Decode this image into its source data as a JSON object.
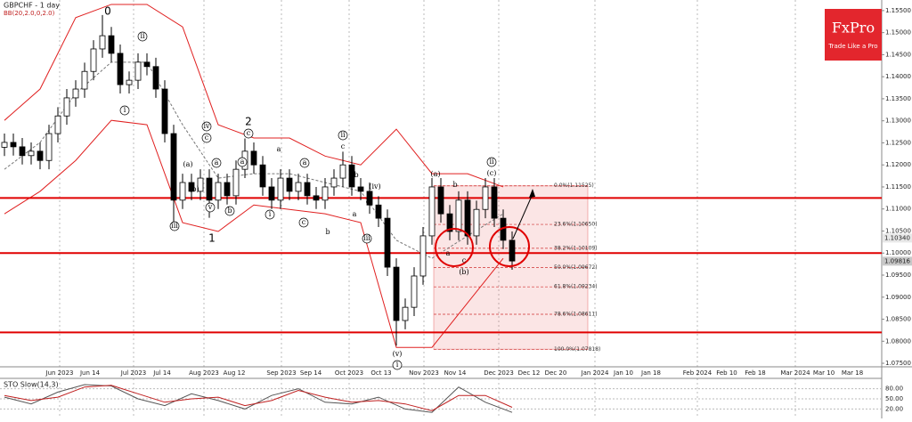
{
  "chart_data": {
    "type": "candlestick",
    "title": "GBPCHF - 1 day",
    "subtitle": "BB(20,2.0,0,2.0)",
    "open": [
      1.124,
      1.1251,
      1.1241,
      1.1221,
      1.1231,
      1.121,
      1.1271,
      1.1311,
      1.1352,
      1.1372,
      1.1412,
      1.1463,
      1.1493,
      1.1453,
      1.1382,
      1.1392,
      1.1433,
      1.1423,
      1.1372,
      1.1271,
      1.112,
      1.116,
      1.114,
      1.117,
      1.112,
      1.116,
      1.113,
      1.119,
      1.1231,
      1.12,
      1.115,
      1.112,
      1.117,
      1.114,
      1.116,
      1.113,
      1.112,
      1.115,
      1.117,
      1.12,
      1.115,
      1.114,
      1.1109,
      1.1079,
      1.0968,
      1.0847,
      1.0877,
      1.0948,
      1.1039,
      1.115,
      1.1089,
      1.1049,
      1.112,
      1.1039,
      1.1099,
      1.115,
      1.1079,
      1.1029
    ],
    "high": [
      1.1271,
      1.1271,
      1.1261,
      1.1251,
      1.1251,
      1.1291,
      1.1331,
      1.1372,
      1.1392,
      1.1432,
      1.1483,
      1.154,
      1.1513,
      1.1473,
      1.1412,
      1.1453,
      1.1453,
      1.1443,
      1.1392,
      1.1291,
      1.118,
      1.118,
      1.119,
      1.119,
      1.118,
      1.118,
      1.121,
      1.126,
      1.1251,
      1.122,
      1.117,
      1.119,
      1.119,
      1.118,
      1.118,
      1.115,
      1.117,
      1.119,
      1.123,
      1.122,
      1.117,
      1.116,
      1.1129,
      1.1099,
      1.0988,
      1.0897,
      1.0968,
      1.1059,
      1.117,
      1.117,
      1.1109,
      1.114,
      1.114,
      1.1119,
      1.117,
      1.117,
      1.1099,
      1.1049
    ],
    "low": [
      1.122,
      1.1221,
      1.1201,
      1.1201,
      1.119,
      1.119,
      1.1251,
      1.1291,
      1.1332,
      1.1352,
      1.1392,
      1.1443,
      1.1433,
      1.1362,
      1.1362,
      1.1372,
      1.1403,
      1.1352,
      1.1251,
      1.107,
      1.11,
      1.112,
      1.112,
      1.108,
      1.11,
      1.111,
      1.111,
      1.117,
      1.118,
      1.113,
      1.11,
      1.11,
      1.112,
      1.112,
      1.111,
      1.11,
      1.11,
      1.113,
      1.115,
      1.113,
      1.112,
      1.1089,
      1.1059,
      1.0948,
      1.079,
      1.0827,
      1.0857,
      1.0928,
      1.1019,
      1.1069,
      1.1029,
      1.1029,
      1.1019,
      1.1019,
      1.1079,
      1.1059,
      1.1009,
      1.0962
    ],
    "close": [
      1.1251,
      1.1241,
      1.1221,
      1.1231,
      1.121,
      1.1271,
      1.1311,
      1.1352,
      1.1372,
      1.1412,
      1.1463,
      1.1493,
      1.1453,
      1.1382,
      1.1392,
      1.1433,
      1.1423,
      1.1372,
      1.1271,
      1.112,
      1.116,
      1.114,
      1.117,
      1.112,
      1.116,
      1.113,
      1.119,
      1.1231,
      1.12,
      1.115,
      1.112,
      1.117,
      1.114,
      1.116,
      1.113,
      1.112,
      1.115,
      1.117,
      1.12,
      1.115,
      1.114,
      1.1109,
      1.1079,
      1.0968,
      1.0847,
      1.0877,
      1.0948,
      1.1039,
      1.115,
      1.1089,
      1.1049,
      1.112,
      1.1039,
      1.1099,
      1.115,
      1.1079,
      1.1029,
      1.0982
    ],
    "color_up": "#ffffff",
    "color_down": "#000000",
    "ylim": [
      1.0742,
      1.1574
    ],
    "yticks": [
      {
        "value": 1.155,
        "label": "1.15500"
      },
      {
        "value": 1.15,
        "label": "1.15000"
      },
      {
        "value": 1.145,
        "label": "1.14500"
      },
      {
        "value": 1.14,
        "label": "1.14000"
      },
      {
        "value": 1.135,
        "label": "1.13500"
      },
      {
        "value": 1.13,
        "label": "1.13000"
      },
      {
        "value": 1.125,
        "label": "1.12500"
      },
      {
        "value": 1.12,
        "label": "1.12000"
      },
      {
        "value": 1.115,
        "label": "1.11500"
      },
      {
        "value": 1.11,
        "label": "1.11000"
      },
      {
        "value": 1.105,
        "label": "1.10500"
      },
      {
        "value": 1.1,
        "label": "1.10000"
      },
      {
        "value": 1.095,
        "label": "1.09500"
      },
      {
        "value": 1.09,
        "label": "1.09000"
      },
      {
        "value": 1.085,
        "label": "1.08500"
      },
      {
        "value": 1.08,
        "label": "1.08000"
      },
      {
        "value": 1.075,
        "label": "1.07500"
      }
    ],
    "x_labels": [
      "Jun 2023",
      "Jun 14",
      "Jul 2023",
      "Jul 14",
      "Aug 2023",
      "Aug 12",
      "Sep 2023",
      "Sep 14",
      "Oct 2023",
      "Oct 13",
      "Nov 2023",
      "Nov 14",
      "Dec 2023",
      "Dec 12",
      "Dec 20",
      "Jan 2024",
      "Jan 10",
      "Jan 18",
      "Feb 2024",
      "Feb 10",
      "Feb 18",
      "Mar 2024",
      "Mar 10",
      "Mar 18"
    ],
    "bands": {
      "x": [
        0,
        4,
        8,
        12,
        16,
        20,
        24,
        28,
        32,
        36,
        40,
        44,
        48,
        52,
        56
      ],
      "upper": [
        1.1301,
        1.1372,
        1.1534,
        1.1564,
        1.1564,
        1.1513,
        1.1291,
        1.1261,
        1.1261,
        1.122,
        1.12,
        1.1281,
        1.118,
        1.118,
        1.115
      ],
      "middle": [
        1.119,
        1.1251,
        1.1362,
        1.1433,
        1.1433,
        1.1291,
        1.117,
        1.118,
        1.118,
        1.116,
        1.114,
        1.1029,
        1.0988,
        1.1039,
        1.1089
      ],
      "lower": [
        1.1089,
        1.114,
        1.121,
        1.1301,
        1.1291,
        1.1069,
        1.1049,
        1.1109,
        1.1099,
        1.1089,
        1.1069,
        1.0786,
        1.0786,
        1.0887,
        1.0988
      ],
      "color": "#e02020"
    },
    "levels": [
      1.1125,
      1.1,
      1.082
    ],
    "level_color": "#e00000",
    "fib": [
      {
        "value": 1.11525,
        "label": "0.0%(1.11525)"
      },
      {
        "value": 1.1065,
        "label": "23.6%(1.10650)"
      },
      {
        "value": 1.10109,
        "label": "38.2%(1.10109)"
      },
      {
        "value": 1.09672,
        "label": "50.0%(1.09672)"
      },
      {
        "value": 1.09234,
        "label": "61.8%(1.09234)"
      },
      {
        "value": 1.08611,
        "label": "78.6%(1.08611)"
      },
      {
        "value": 1.07818,
        "label": "100.0%(1.07818)"
      }
    ],
    "price_tags": [
      {
        "value": 1.1034,
        "label": "1.10340"
      },
      {
        "value": 1.09816,
        "label": "1.09816"
      }
    ],
    "wave_labels": [
      "0",
      "ii",
      "i",
      "iv",
      "c",
      "(a)",
      "a",
      "(b)",
      "iii",
      "v",
      "1",
      "2",
      "c",
      "a",
      "b",
      "a",
      "a",
      "i",
      "c",
      "b",
      "ii",
      "c",
      "b",
      "a",
      "c",
      "iii",
      "(iv)",
      "(v)",
      "i",
      "(a)",
      "b",
      "a",
      "c",
      "(b)",
      "ii",
      "(c)"
    ],
    "indicator": {
      "title": "STO Slow(14,3)",
      "ylim": [
        0,
        100
      ],
      "yticks": [
        {
          "value": 20,
          "label": "20.00"
        },
        {
          "value": 50,
          "label": "50.00"
        },
        {
          "value": 80,
          "label": "80.00"
        }
      ],
      "x": [
        0,
        3,
        6,
        9,
        12,
        15,
        18,
        21,
        24,
        27,
        30,
        33,
        36,
        39,
        42,
        45,
        48,
        51,
        54,
        57
      ],
      "series": [
        {
          "color": "#555555",
          "values": [
            55,
            35,
            70,
            92,
            88,
            50,
            30,
            65,
            45,
            20,
            60,
            80,
            40,
            35,
            55,
            20,
            10,
            85,
            40,
            10
          ]
        },
        {
          "color": "#c02020",
          "values": [
            60,
            45,
            55,
            85,
            90,
            65,
            40,
            50,
            55,
            30,
            45,
            75,
            55,
            40,
            45,
            35,
            15,
            60,
            60,
            25
          ]
        }
      ]
    }
  },
  "logo": {
    "brand": "FxPro",
    "tagline": "Trade Like a Pro"
  }
}
